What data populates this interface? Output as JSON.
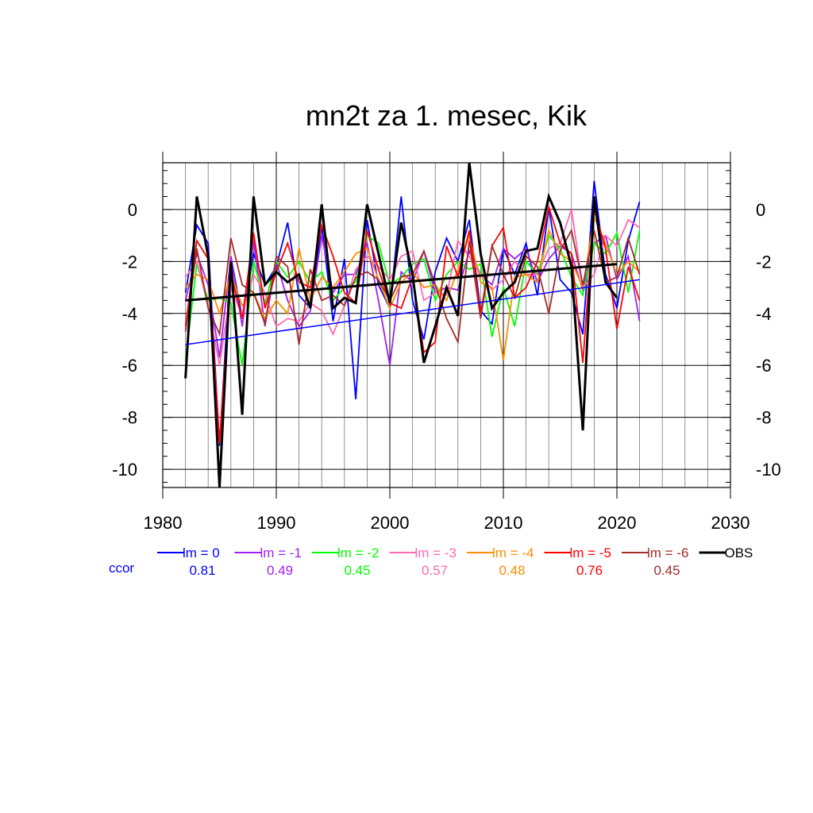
{
  "chart_data": {
    "type": "line",
    "title": "mn2t za 1. mesec, Kik",
    "xlim": [
      1980,
      2030
    ],
    "ylim": [
      -10.7,
      1.8
    ],
    "x_ticks": [
      1980,
      1990,
      2000,
      2010,
      2020,
      2030
    ],
    "y_ticks": [
      0,
      -2,
      -4,
      -6,
      -8,
      -10
    ],
    "grid": true,
    "legend_position": "bottom",
    "ccor_label": "ccor",
    "series": [
      {
        "name": "lm = 0",
        "color": "#0000ff",
        "ccor": "0.81",
        "x": [
          1982,
          1983,
          1984,
          1985,
          1986,
          1987,
          1988,
          1989,
          1990,
          1991,
          1992,
          1993,
          1994,
          1995,
          1996,
          1997,
          1998,
          1999,
          2000,
          2001,
          2002,
          2003,
          2004,
          2005,
          2006,
          2007,
          2008,
          2009,
          2010,
          2011,
          2012,
          2013,
          2014,
          2015,
          2016,
          2017,
          2018,
          2019,
          2020,
          2021,
          2022
        ],
        "y": [
          -3.2,
          -0.6,
          -1.3,
          -9.1,
          -1.8,
          -4.2,
          -1.7,
          -2.9,
          -2.2,
          -0.5,
          -3.3,
          -3.8,
          -0.6,
          -4.3,
          -1.9,
          -7.3,
          -0.4,
          -2.9,
          -3.8,
          0.5,
          -3.5,
          -5.0,
          -2.4,
          -1.1,
          -2.0,
          -0.4,
          -3.9,
          -4.4,
          -1.5,
          -2.5,
          -1.3,
          -3.3,
          0.1,
          -2.7,
          -3.2,
          -4.8,
          1.1,
          -2.5,
          -3.8,
          -1.2,
          0.3
        ]
      },
      {
        "name": "lm = -1",
        "color": "#a020f0",
        "ccor": "0.49",
        "x": [
          1982,
          1983,
          1984,
          1985,
          1986,
          1987,
          1988,
          1989,
          1990,
          1991,
          1992,
          1993,
          1994,
          1995,
          1996,
          1997,
          1998,
          1999,
          2000,
          2001,
          2002,
          2003,
          2004,
          2005,
          2006,
          2007,
          2008,
          2009,
          2010,
          2011,
          2012,
          2013,
          2014,
          2015,
          2016,
          2017,
          2018,
          2019,
          2020,
          2021,
          2022
        ],
        "y": [
          -3.5,
          -1.7,
          -2.9,
          -5.7,
          -1.8,
          -4.5,
          -1.2,
          -4.5,
          -2.0,
          -3.5,
          -4.5,
          -3.9,
          -1.0,
          -3.2,
          -2.5,
          -2.5,
          -1.3,
          -3.5,
          -6.0,
          -2.4,
          -2.8,
          -1.6,
          -3.2,
          -3.0,
          -3.1,
          -1.6,
          -2.5,
          -2.9,
          -1.5,
          -1.9,
          -1.5,
          -2.8,
          -1.9,
          -1.4,
          -1.7,
          -3.1,
          -1.3,
          -1.0,
          -2.7,
          -1.8,
          -4.3
        ]
      },
      {
        "name": "lm = -2",
        "color": "#00ff00",
        "ccor": "0.45",
        "x": [
          1982,
          1983,
          1984,
          1985,
          1986,
          1987,
          1988,
          1989,
          1990,
          1991,
          1992,
          1993,
          1994,
          1995,
          1996,
          1997,
          1998,
          1999,
          2000,
          2001,
          2002,
          2003,
          2004,
          2005,
          2006,
          2007,
          2008,
          2009,
          2010,
          2011,
          2012,
          2013,
          2014,
          2015,
          2016,
          2017,
          2018,
          2019,
          2020,
          2021,
          2022
        ],
        "y": [
          -5.8,
          -2.1,
          -3.5,
          -3.4,
          -3.6,
          -6.0,
          -2.0,
          -3.6,
          -2.0,
          -2.6,
          -2.0,
          -2.8,
          -2.4,
          -3.5,
          -3.0,
          -2.8,
          -1.0,
          -1.3,
          -2.9,
          -2.6,
          -2.1,
          -1.9,
          -3.5,
          -2.5,
          -2.0,
          -2.3,
          -2.1,
          -4.9,
          -3.0,
          -4.5,
          -2.0,
          -2.5,
          -1.0,
          -1.5,
          -2.6,
          -3.3,
          -1.3,
          -1.7,
          -0.9,
          -3.2,
          -0.8
        ]
      },
      {
        "name": "lm = -3",
        "color": "#ff69b4",
        "ccor": "0.57",
        "x": [
          1982,
          1983,
          1984,
          1985,
          1986,
          1987,
          1988,
          1989,
          1990,
          1991,
          1992,
          1993,
          1994,
          1995,
          1996,
          1997,
          1998,
          1999,
          2000,
          2001,
          2002,
          2003,
          2004,
          2005,
          2006,
          2007,
          2008,
          2009,
          2010,
          2011,
          2012,
          2013,
          2014,
          2015,
          2016,
          2017,
          2018,
          2019,
          2020,
          2021,
          2022
        ],
        "y": [
          -2.6,
          -2.0,
          -3.7,
          -6.0,
          -3.0,
          -4.1,
          -2.5,
          -3.2,
          -4.5,
          -4.2,
          -4.3,
          -3.6,
          -3.9,
          -4.8,
          -3.7,
          -2.3,
          -1.8,
          -2.2,
          -2.7,
          -1.8,
          -1.6,
          -3.5,
          -3.2,
          -3.3,
          -1.2,
          -1.8,
          -2.5,
          -3.1,
          -2.7,
          -2.0,
          -2.5,
          -2.5,
          -1.5,
          -1.3,
          0.0,
          -3.0,
          -2.5,
          -1.0,
          -1.4,
          -0.4,
          -0.7
        ]
      },
      {
        "name": "lm = -4",
        "color": "#ff8c00",
        "ccor": "0.48",
        "x": [
          1982,
          1983,
          1984,
          1985,
          1986,
          1987,
          1988,
          1989,
          1990,
          1991,
          1992,
          1993,
          1994,
          1995,
          1996,
          1997,
          1998,
          1999,
          2000,
          2001,
          2002,
          2003,
          2004,
          2005,
          2006,
          2007,
          2008,
          2009,
          2010,
          2011,
          2012,
          2013,
          2014,
          2015,
          2016,
          2017,
          2018,
          2019,
          2020,
          2021,
          2022
        ],
        "y": [
          -3.0,
          -2.5,
          -2.7,
          -4.0,
          -2.5,
          -3.7,
          -3.2,
          -4.2,
          -3.5,
          -4.0,
          -1.5,
          -3.5,
          -2.6,
          -3.0,
          -2.4,
          -1.7,
          -1.5,
          -2.7,
          -3.8,
          -2.8,
          -2.4,
          -3.0,
          -2.9,
          -3.5,
          -2.3,
          -1.0,
          -2.8,
          -3.0,
          -5.8,
          -2.6,
          -2.5,
          -2.8,
          -0.8,
          -1.7,
          -2.0,
          -3.0,
          -0.3,
          -1.3,
          -2.5,
          -2.0,
          -2.4
        ]
      },
      {
        "name": "lm = -5",
        "color": "#ff0000",
        "ccor": "0.76",
        "x": [
          1982,
          1983,
          1984,
          1985,
          1986,
          1987,
          1988,
          1989,
          1990,
          1991,
          1992,
          1993,
          1994,
          1995,
          1996,
          1997,
          1998,
          1999,
          2000,
          2001,
          2002,
          2003,
          2004,
          2005,
          2006,
          2007,
          2008,
          2009,
          2010,
          2011,
          2012,
          2013,
          2014,
          2015,
          2016,
          2017,
          2018,
          2019,
          2020,
          2021,
          2022
        ],
        "y": [
          -4.5,
          -1.2,
          -1.9,
          -9.0,
          -2.5,
          -4.2,
          -0.9,
          -3.8,
          -2.4,
          -1.3,
          -2.8,
          -3.0,
          -0.6,
          -1.8,
          -3.2,
          -3.6,
          -0.8,
          -2.3,
          -3.6,
          -3.8,
          -2.6,
          -5.5,
          -5.1,
          -1.4,
          -2.6,
          -0.8,
          -4.0,
          -1.4,
          -0.7,
          -3.4,
          -3.0,
          -2.0,
          0.1,
          -1.3,
          -1.7,
          -5.9,
          0.0,
          -1.5,
          -4.6,
          -2.2,
          -3.5
        ]
      },
      {
        "name": "lm = -6",
        "color": "#a52a2a",
        "ccor": "0.45",
        "x": [
          1982,
          1983,
          1984,
          1985,
          1986,
          1987,
          1988,
          1989,
          1990,
          1991,
          1992,
          1993,
          1994,
          1995,
          1996,
          1997,
          1998,
          1999,
          2000,
          2001,
          2002,
          2003,
          2004,
          2005,
          2006,
          2007,
          2008,
          2009,
          2010,
          2011,
          2012,
          2013,
          2014,
          2015,
          2016,
          2017,
          2018,
          2019,
          2020,
          2021,
          2022
        ],
        "y": [
          -4.7,
          -1.5,
          -3.8,
          -4.8,
          -1.1,
          -2.9,
          -3.2,
          -4.4,
          -1.8,
          -2.2,
          -5.2,
          -2.3,
          -3.5,
          -3.3,
          -3.7,
          -2.6,
          -2.4,
          -2.7,
          -3.5,
          -2.6,
          -2.5,
          -1.6,
          -2.9,
          -4.2,
          -5.1,
          -1.2,
          -4.2,
          -1.4,
          -2.5,
          -3.4,
          -1.8,
          -2.2,
          -4.0,
          -1.6,
          -0.8,
          -2.9,
          -0.8,
          -2.8,
          -2.6,
          -1.1,
          -2.5
        ]
      },
      {
        "name": "OBS",
        "color": "#000000",
        "ccor": "",
        "x": [
          1982,
          1983,
          1984,
          1985,
          1986,
          1987,
          1988,
          1989,
          1990,
          1991,
          1992,
          1993,
          1994,
          1995,
          1996,
          1997,
          1998,
          1999,
          2000,
          2001,
          2002,
          2003,
          2004,
          2005,
          2006,
          2007,
          2008,
          2009,
          2010,
          2011,
          2012,
          2013,
          2014,
          2015,
          2016,
          2017,
          2018,
          2019,
          2020
        ],
        "y": [
          -6.5,
          0.5,
          -1.8,
          -10.7,
          -2.0,
          -7.9,
          0.5,
          -2.9,
          -2.4,
          -2.8,
          -2.5,
          -3.8,
          0.2,
          -3.8,
          -3.4,
          -3.6,
          0.2,
          -1.7,
          -3.6,
          -0.5,
          -2.5,
          -5.9,
          -4.5,
          -3.0,
          -4.1,
          1.8,
          -1.7,
          -3.8,
          -3.2,
          -2.8,
          -1.6,
          -1.5,
          0.5,
          -0.5,
          -2.2,
          -8.5,
          0.5,
          -2.8,
          -3.4
        ]
      }
    ],
    "trend_lines": [
      {
        "name": "lm = 0 trend",
        "color": "#0000ff",
        "x": [
          1982,
          2022
        ],
        "y": [
          -5.2,
          -2.7
        ]
      },
      {
        "name": "OBS trend",
        "color": "#000000",
        "x": [
          1982,
          2020
        ],
        "y": [
          -3.5,
          -2.1
        ]
      }
    ]
  }
}
